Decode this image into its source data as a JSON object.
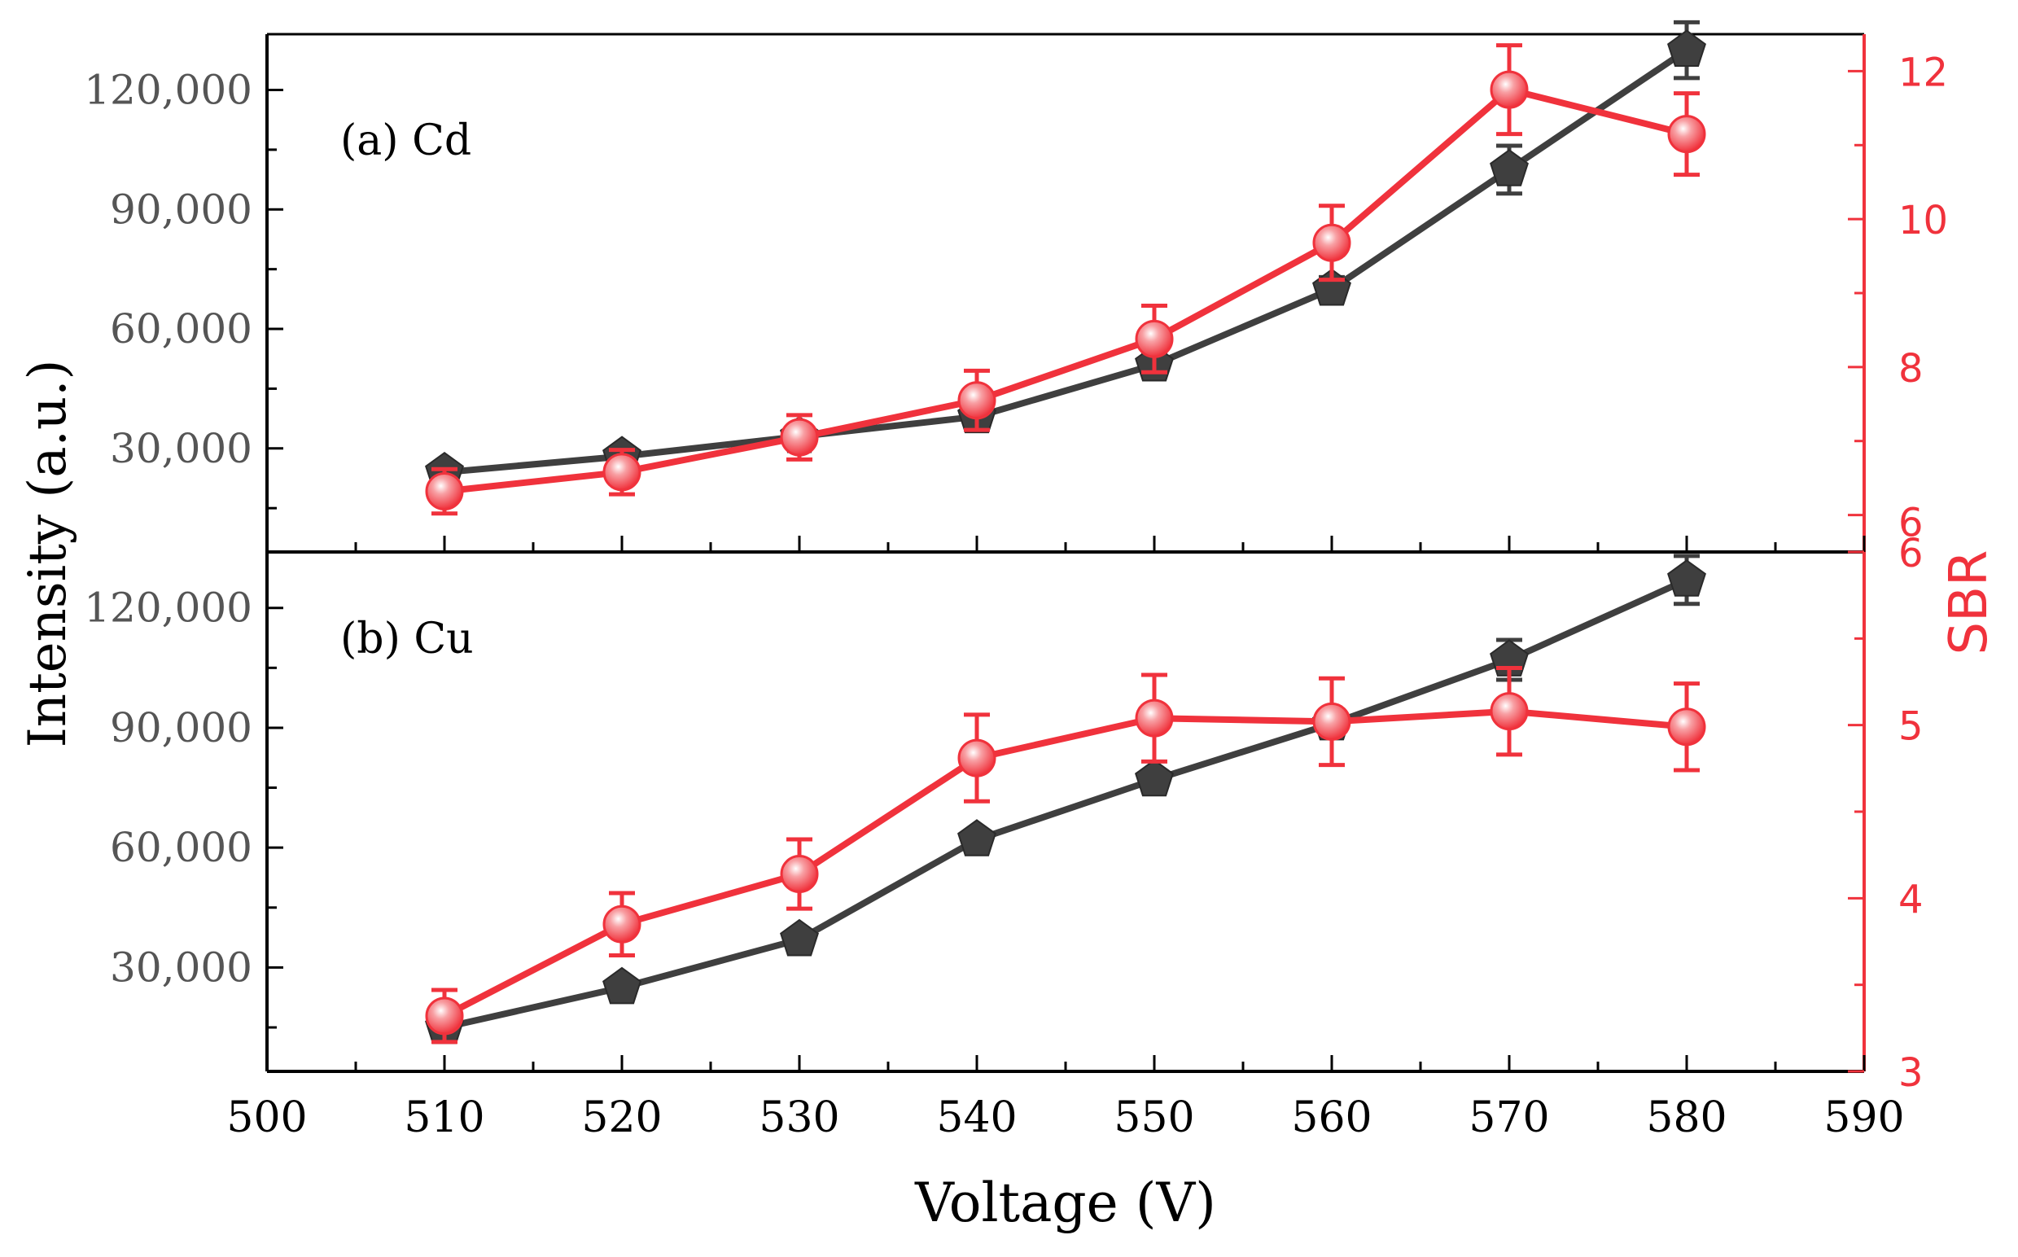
{
  "chart_data": {
    "type": "line",
    "xlabel": "Voltage (V)",
    "ylabel_left": "Intensity (a.u.)",
    "ylabel_right": "SBR",
    "x_ticks": [
      "500",
      "510",
      "520",
      "530",
      "540",
      "550",
      "560",
      "570",
      "580",
      "590"
    ],
    "xlim": [
      500,
      590
    ],
    "colors": {
      "intensity": "#3f3f3f",
      "sbr": "#f0323c",
      "axis": "#000000",
      "left_tick_text": "#555555",
      "right_axis": "#f0323c"
    },
    "panels": [
      {
        "label": "(a) Cd",
        "ylim_left": [
          4000,
          134000
        ],
        "ylim_right": [
          5.5,
          12.5
        ],
        "left_ticks": [
          30000,
          60000,
          90000,
          120000
        ],
        "left_tick_labels": [
          "30,000",
          "60,000",
          "90,000",
          "120,000"
        ],
        "right_ticks": [
          6,
          8,
          10,
          12
        ],
        "right_tick_labels": [
          "6",
          "8",
          "10",
          "12"
        ],
        "series": [
          {
            "name": "Intensity",
            "axis": "left",
            "x": [
              510,
              520,
              530,
              540,
              550,
              560,
              570,
              580
            ],
            "values": [
              24000,
              28000,
              33000,
              38000,
              51000,
              70000,
              100000,
              130000
            ],
            "errors": [
              1500,
              1500,
              1500,
              2000,
              2500,
              3000,
              6000,
              7000
            ]
          },
          {
            "name": "SBR",
            "axis": "right",
            "x": [
              510,
              520,
              530,
              540,
              550,
              560,
              570,
              580
            ],
            "values": [
              6.32,
              6.58,
              7.05,
              7.55,
              8.38,
              9.68,
              11.75,
              11.15
            ],
            "errors": [
              0.3,
              0.3,
              0.3,
              0.4,
              0.45,
              0.5,
              0.6,
              0.55
            ]
          }
        ]
      },
      {
        "label": "(b) Cu",
        "ylim_left": [
          4000,
          134000
        ],
        "ylim_right": [
          3,
          6
        ],
        "left_ticks": [
          30000,
          60000,
          90000,
          120000
        ],
        "left_tick_labels": [
          "30,000",
          "60,000",
          "90,000",
          "120,000"
        ],
        "right_ticks": [
          3,
          4,
          5,
          6
        ],
        "right_tick_labels": [
          "3",
          "4",
          "5",
          "6"
        ],
        "series": [
          {
            "name": "Intensity",
            "axis": "left",
            "x": [
              510,
              520,
              530,
              540,
              550,
              560,
              570,
              580
            ],
            "values": [
              15000,
              25000,
              37000,
              62000,
              77000,
              91000,
              107000,
              127000
            ],
            "errors": [
              1000,
              1500,
              1500,
              2000,
              2000,
              2500,
              5000,
              6000
            ]
          },
          {
            "name": "SBR",
            "axis": "right",
            "x": [
              510,
              520,
              530,
              540,
              550,
              560,
              570,
              580
            ],
            "values": [
              3.32,
              3.85,
              4.14,
              4.81,
              5.04,
              5.02,
              5.08,
              4.99
            ],
            "errors": [
              0.15,
              0.18,
              0.2,
              0.25,
              0.25,
              0.25,
              0.25,
              0.25
            ]
          }
        ]
      }
    ]
  }
}
